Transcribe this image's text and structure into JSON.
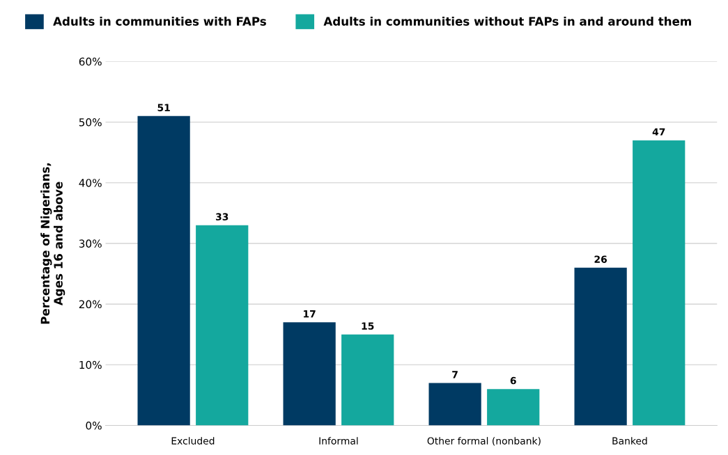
{
  "chart_data": {
    "type": "bar",
    "ylabel": "Percentage of Nigerians,\nAges 16 and above",
    "categories": [
      "Excluded",
      "Informal",
      "Other formal (nonbank)",
      "Banked"
    ],
    "series": [
      {
        "name": "Adults in communities with FAPs",
        "color": "#003a63",
        "values": [
          51,
          17,
          7,
          26
        ]
      },
      {
        "name": "Adults in communities without FAPs in and around them",
        "color": "#14a89e",
        "values": [
          33,
          15,
          6,
          47
        ]
      }
    ],
    "ylim": [
      0,
      60
    ],
    "yticks": [
      {
        "value": 0,
        "label": "0%"
      },
      {
        "value": 10,
        "label": "10%"
      },
      {
        "value": 20,
        "label": "20%"
      },
      {
        "value": 30,
        "label": "30%"
      },
      {
        "value": 40,
        "label": "40%"
      },
      {
        "value": 50,
        "label": "50%"
      },
      {
        "value": 60,
        "label": "60%"
      }
    ],
    "grid": "y",
    "legend": "top",
    "data_labels": true
  }
}
